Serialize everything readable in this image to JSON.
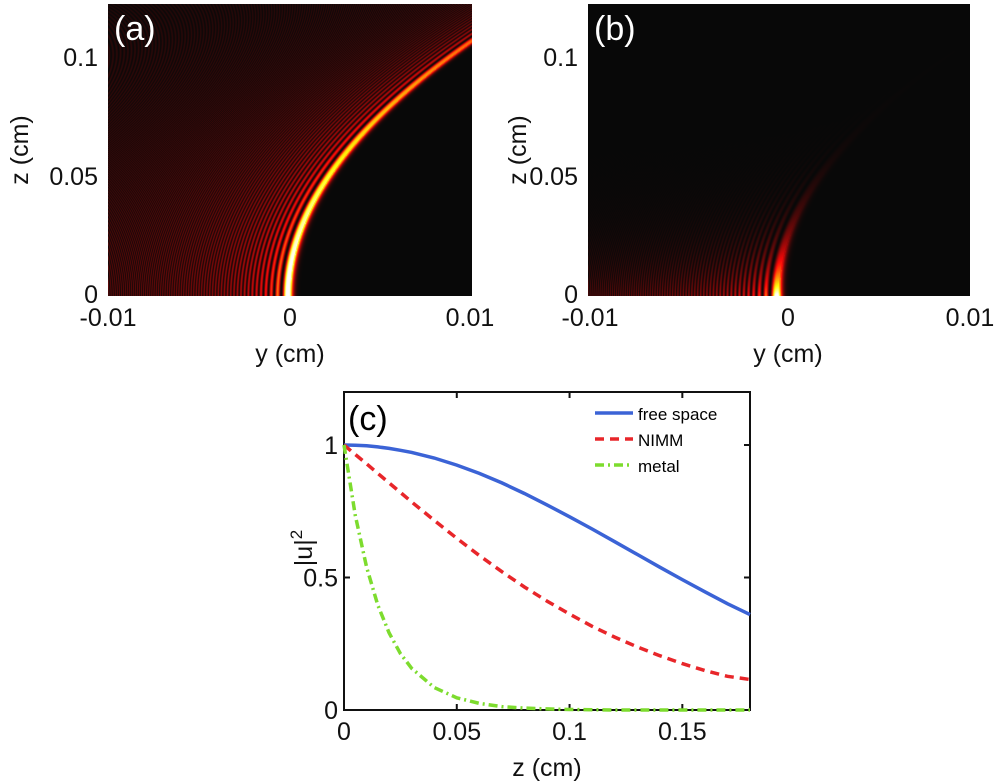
{
  "chart_data": [
    {
      "type": "heatmap",
      "panel_label": "(a)",
      "xlabel": "y (cm)",
      "ylabel": "z (cm)",
      "xlim": [
        -0.01,
        0.01
      ],
      "ylim": [
        0,
        0.1225
      ],
      "xticks": [
        "-0.01",
        "0",
        "0.01"
      ],
      "yticks": [
        "0",
        "0.05",
        "0.1"
      ],
      "colormap": "hot"
    },
    {
      "type": "heatmap",
      "panel_label": "(b)",
      "xlabel": "y (cm)",
      "ylabel": "z (cm)",
      "xlim": [
        -0.01,
        0.01
      ],
      "ylim": [
        0,
        0.1225
      ],
      "xticks": [
        "-0.01",
        "0",
        "0.01"
      ],
      "yticks": [
        "0",
        "0.05",
        "0.1"
      ],
      "colormap": "hot"
    },
    {
      "type": "line",
      "panel_label": "(c)",
      "xlabel": "z (cm)",
      "ylabel": "|u|",
      "ylabel_sup": "2",
      "xlim": [
        0,
        0.18
      ],
      "ylim": [
        0,
        1.2
      ],
      "xticks": [
        "0",
        "0.05",
        "0.1",
        "0.15"
      ],
      "yticks": [
        "0",
        "0.5",
        "1"
      ],
      "legend": "top-right",
      "x": [
        0,
        0.005,
        0.01,
        0.015,
        0.02,
        0.025,
        0.03,
        0.04,
        0.05,
        0.06,
        0.07,
        0.08,
        0.09,
        0.1,
        0.11,
        0.12,
        0.13,
        0.14,
        0.15,
        0.16,
        0.17,
        0.18
      ],
      "series": [
        {
          "name": "free space",
          "color": "#3b63d6",
          "style": "solid",
          "values": [
            1.0,
            0.999,
            0.997,
            0.993,
            0.987,
            0.98,
            0.972,
            0.951,
            0.924,
            0.893,
            0.857,
            0.817,
            0.774,
            0.729,
            0.683,
            0.635,
            0.587,
            0.539,
            0.492,
            0.446,
            0.401,
            0.36
          ]
        },
        {
          "name": "NIMM",
          "color": "#e8262a",
          "style": "dashed",
          "values": [
            1.0,
            0.964,
            0.929,
            0.893,
            0.857,
            0.821,
            0.785,
            0.716,
            0.648,
            0.583,
            0.522,
            0.464,
            0.411,
            0.362,
            0.316,
            0.275,
            0.238,
            0.205,
            0.175,
            0.149,
            0.127,
            0.115
          ]
        },
        {
          "name": "metal",
          "color": "#7ddc2e",
          "style": "dash-dot",
          "values": [
            1.0,
            0.734,
            0.539,
            0.396,
            0.291,
            0.213,
            0.157,
            0.085,
            0.046,
            0.025,
            0.013,
            0.007,
            0.004,
            0.002,
            0.001,
            0.0,
            0.0,
            0.0,
            0.0,
            0.0,
            0.0,
            0.0
          ]
        }
      ]
    }
  ]
}
